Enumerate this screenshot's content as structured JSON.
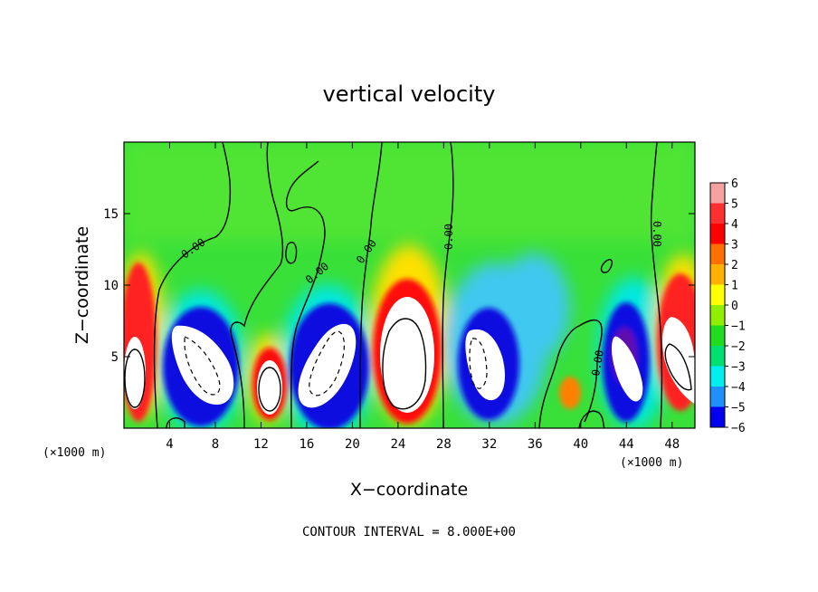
{
  "chart_data": {
    "type": "heatmap",
    "title": "vertical velocity",
    "xlabel": "X−coordinate",
    "ylabel": "Z−coordinate",
    "x_unit_left": "(×1000 m)",
    "x_unit_right": "(×1000 m)",
    "xlim": [
      0,
      50
    ],
    "ylim": [
      0,
      20
    ],
    "xticks": [
      4,
      8,
      12,
      16,
      20,
      24,
      28,
      32,
      36,
      40,
      44,
      48
    ],
    "yticks": [
      5,
      10,
      15
    ],
    "footer": "CONTOUR INTERVAL = 8.000E+00",
    "contour_label": "0.00",
    "colorbar": {
      "ticks": [
        "6",
        "5",
        "4",
        "3",
        "2",
        "1",
        "0",
        "−1",
        "−2",
        "−3",
        "−4",
        "−5",
        "−6"
      ],
      "min": -6,
      "max": 6,
      "colors": [
        "#f6a0a0",
        "#ff3030",
        "#ff0000",
        "#ff7000",
        "#ffb000",
        "#ffff00",
        "#90ee00",
        "#20dd20",
        "#00e070",
        "#00eeee",
        "#1e90ff",
        "#0000ee",
        "#5000b0"
      ]
    },
    "cells": [
      {
        "x": 1.2,
        "z": 4.5,
        "w": 5.5
      },
      {
        "x": 1.2,
        "z": 9.5,
        "w": 4
      },
      {
        "x": 4.0,
        "z": 6,
        "w": -4
      },
      {
        "x": 7.5,
        "z": 4.5,
        "w": -6
      },
      {
        "x": 13.0,
        "z": 3.5,
        "w": 5.5
      },
      {
        "x": 18.0,
        "z": 4.5,
        "w": -6
      },
      {
        "x": 25.0,
        "z": 5.5,
        "w": 6
      },
      {
        "x": 24.5,
        "z": 11,
        "w": 2.5
      },
      {
        "x": 31.0,
        "z": 4.5,
        "w": -6
      },
      {
        "x": 35.0,
        "z": 7.5,
        "w": -3
      },
      {
        "x": 38.8,
        "z": 2.5,
        "w": 3
      },
      {
        "x": 43.0,
        "z": 4.5,
        "w": -6
      },
      {
        "x": 48.5,
        "z": 6,
        "w": 6
      },
      {
        "x": 18.0,
        "z": 9.5,
        "w": -2
      }
    ]
  }
}
